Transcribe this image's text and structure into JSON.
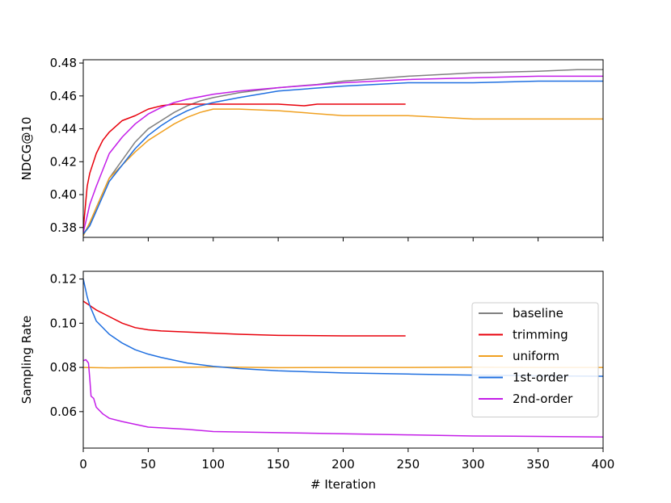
{
  "chart_data": [
    {
      "type": "line",
      "title": "",
      "xlabel": "",
      "ylabel": "NDCG@10",
      "xlim": [
        0,
        400
      ],
      "ylim": [
        0.374,
        0.482
      ],
      "xticks": [
        0,
        50,
        100,
        150,
        200,
        250,
        300,
        350,
        400
      ],
      "yticks": [
        0.38,
        0.4,
        0.42,
        0.44,
        0.46,
        0.48
      ],
      "ytick_labels": [
        "0.38",
        "0.40",
        "0.42",
        "0.44",
        "0.46",
        "0.48"
      ],
      "show_xtick_labels": false,
      "grid": false,
      "series": [
        {
          "name": "baseline",
          "color": "#808080",
          "x": [
            0,
            5,
            10,
            20,
            30,
            40,
            50,
            60,
            70,
            80,
            90,
            100,
            120,
            150,
            180,
            200,
            250,
            300,
            350,
            380,
            400
          ],
          "y": [
            0.376,
            0.382,
            0.392,
            0.41,
            0.421,
            0.432,
            0.44,
            0.445,
            0.45,
            0.454,
            0.457,
            0.459,
            0.462,
            0.465,
            0.467,
            0.469,
            0.472,
            0.474,
            0.475,
            0.476,
            0.476
          ]
        },
        {
          "name": "trimming",
          "color": "#e8000b",
          "x": [
            0,
            3,
            5,
            10,
            15,
            20,
            30,
            40,
            50,
            60,
            70,
            80,
            100,
            150,
            170,
            180,
            200,
            248
          ],
          "y": [
            0.379,
            0.405,
            0.413,
            0.425,
            0.433,
            0.438,
            0.445,
            0.448,
            0.452,
            0.454,
            0.455,
            0.455,
            0.455,
            0.455,
            0.454,
            0.455,
            0.455,
            0.455
          ]
        },
        {
          "name": "uniform",
          "color": "#f0a020",
          "x": [
            0,
            5,
            10,
            20,
            30,
            40,
            50,
            60,
            70,
            80,
            90,
            100,
            120,
            150,
            200,
            250,
            300,
            350,
            400
          ],
          "y": [
            0.375,
            0.383,
            0.392,
            0.41,
            0.418,
            0.426,
            0.433,
            0.438,
            0.443,
            0.447,
            0.45,
            0.452,
            0.452,
            0.451,
            0.448,
            0.448,
            0.446,
            0.446,
            0.446
          ]
        },
        {
          "name": "1st-order",
          "color": "#1f6fe0",
          "x": [
            0,
            5,
            10,
            20,
            30,
            40,
            50,
            60,
            70,
            80,
            90,
            100,
            120,
            150,
            200,
            250,
            300,
            350,
            400
          ],
          "y": [
            0.376,
            0.381,
            0.39,
            0.408,
            0.418,
            0.428,
            0.436,
            0.442,
            0.447,
            0.451,
            0.454,
            0.456,
            0.459,
            0.463,
            0.466,
            0.468,
            0.468,
            0.469,
            0.469
          ]
        },
        {
          "name": "2nd-order",
          "color": "#c41ee8",
          "x": [
            0,
            3,
            5,
            10,
            15,
            20,
            30,
            40,
            50,
            60,
            70,
            80,
            100,
            120,
            150,
            200,
            250,
            300,
            350,
            400
          ],
          "y": [
            0.377,
            0.387,
            0.394,
            0.405,
            0.415,
            0.425,
            0.435,
            0.443,
            0.449,
            0.453,
            0.456,
            0.458,
            0.461,
            0.463,
            0.465,
            0.468,
            0.47,
            0.471,
            0.472,
            0.472
          ]
        }
      ]
    },
    {
      "type": "line",
      "title": "",
      "xlabel": "# Iteration",
      "ylabel": "Sampling Rate",
      "xlim": [
        0,
        400
      ],
      "ylim": [
        0.0435,
        0.1235
      ],
      "xticks": [
        0,
        50,
        100,
        150,
        200,
        250,
        300,
        350,
        400
      ],
      "xtick_labels": [
        "0",
        "50",
        "100",
        "150",
        "200",
        "250",
        "300",
        "350",
        "400"
      ],
      "yticks": [
        0.06,
        0.08,
        0.1,
        0.12
      ],
      "ytick_labels": [
        "0.06",
        "0.08",
        "0.10",
        "0.12"
      ],
      "grid": false,
      "legend": {
        "position": "center-right",
        "entries": [
          "baseline",
          "trimming",
          "uniform",
          "1st-order",
          "2nd-order"
        ]
      },
      "series": [
        {
          "name": "trimming",
          "color": "#e8000b",
          "x": [
            0,
            5,
            10,
            20,
            30,
            40,
            50,
            60,
            80,
            100,
            120,
            150,
            200,
            248
          ],
          "y": [
            0.11,
            0.108,
            0.106,
            0.103,
            0.1,
            0.098,
            0.097,
            0.0965,
            0.096,
            0.0955,
            0.095,
            0.0945,
            0.0943,
            0.0943
          ]
        },
        {
          "name": "uniform",
          "color": "#f0a020",
          "x": [
            0,
            20,
            50,
            100,
            150,
            200,
            250,
            300,
            350,
            400
          ],
          "y": [
            0.08,
            0.0798,
            0.08,
            0.0802,
            0.0799,
            0.08,
            0.08,
            0.0801,
            0.08,
            0.08
          ]
        },
        {
          "name": "1st-order",
          "color": "#1f6fe0",
          "x": [
            0,
            3,
            5,
            10,
            20,
            30,
            40,
            50,
            60,
            80,
            100,
            120,
            150,
            200,
            250,
            300,
            350,
            400
          ],
          "y": [
            0.12,
            0.112,
            0.108,
            0.101,
            0.095,
            0.091,
            0.088,
            0.086,
            0.0845,
            0.082,
            0.0805,
            0.0795,
            0.0785,
            0.0775,
            0.077,
            0.0765,
            0.0762,
            0.076
          ]
        },
        {
          "name": "2nd-order",
          "color": "#c41ee8",
          "x": [
            0,
            2,
            4,
            5,
            6,
            8,
            10,
            15,
            20,
            30,
            50,
            80,
            100,
            150,
            200,
            250,
            300,
            350,
            400
          ],
          "y": [
            0.083,
            0.0835,
            0.082,
            0.075,
            0.067,
            0.066,
            0.062,
            0.059,
            0.057,
            0.0555,
            0.053,
            0.052,
            0.051,
            0.0505,
            0.05,
            0.0495,
            0.049,
            0.0488,
            0.0485
          ]
        }
      ]
    }
  ]
}
